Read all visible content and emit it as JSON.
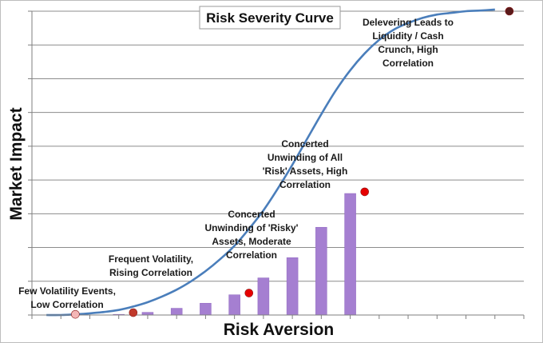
{
  "chart_data": {
    "type": "line",
    "title": "Risk Severity Curve",
    "xlabel": "Risk Aversion",
    "ylabel": "Market Impact",
    "xlim": [
      0,
      17
    ],
    "ylim": [
      0,
      9
    ],
    "grid": true,
    "legend": "none",
    "colors": {
      "curve": "#4a7ebb",
      "bars": "#a57fd1",
      "bar_edge": "#8f67c0"
    },
    "curve": {
      "x": [
        0.5,
        1.0,
        1.5,
        2.0,
        2.5,
        3.0,
        3.5,
        4.0,
        4.5,
        5.0,
        5.5,
        6.0,
        6.5,
        7.0,
        7.5,
        8.0,
        8.5,
        9.0,
        9.5,
        10.0,
        10.5,
        11.0,
        11.5,
        12.0,
        12.5,
        13.0,
        13.5,
        14.0,
        14.5,
        15.0,
        15.5,
        16.0
      ],
      "y": [
        0.0,
        0.0,
        0.02,
        0.05,
        0.09,
        0.15,
        0.25,
        0.38,
        0.55,
        0.75,
        1.0,
        1.3,
        1.65,
        2.05,
        2.55,
        3.1,
        3.75,
        4.45,
        5.2,
        5.95,
        6.65,
        7.25,
        7.75,
        8.15,
        8.45,
        8.65,
        8.8,
        8.9,
        8.95,
        9.0,
        9.02,
        9.05
      ]
    },
    "bars": {
      "x": [
        3,
        4,
        5,
        6,
        7,
        8,
        9,
        10,
        11
      ],
      "values": [
        0.02,
        0.08,
        0.2,
        0.35,
        0.6,
        1.1,
        1.7,
        2.6,
        3.6
      ]
    },
    "points": [
      {
        "x": 1.5,
        "y": 0.02,
        "color": "#f4b6b6",
        "label": "Few Volatility Events,\nLow Correlation"
      },
      {
        "x": 3.5,
        "y": 0.07,
        "color": "#c0392b",
        "label": "Frequent Volatility,\nRising Correlation"
      },
      {
        "x": 7.5,
        "y": 0.65,
        "color": "#e60000",
        "label": "Concerted\nUnwinding of 'Risky'\nAssets, Moderate\nCorrelation"
      },
      {
        "x": 11.5,
        "y": 3.65,
        "color": "#e60000",
        "label": "Concerted\nUnwinding of All\n'Risk' Assets, High\nCorrelation"
      },
      {
        "x": 16.5,
        "y": 9.0,
        "color": "#5a1a1a",
        "label": "Delevering Leads to\nLiquidity / Cash\nCrunch, High\nCorrelation"
      }
    ]
  }
}
